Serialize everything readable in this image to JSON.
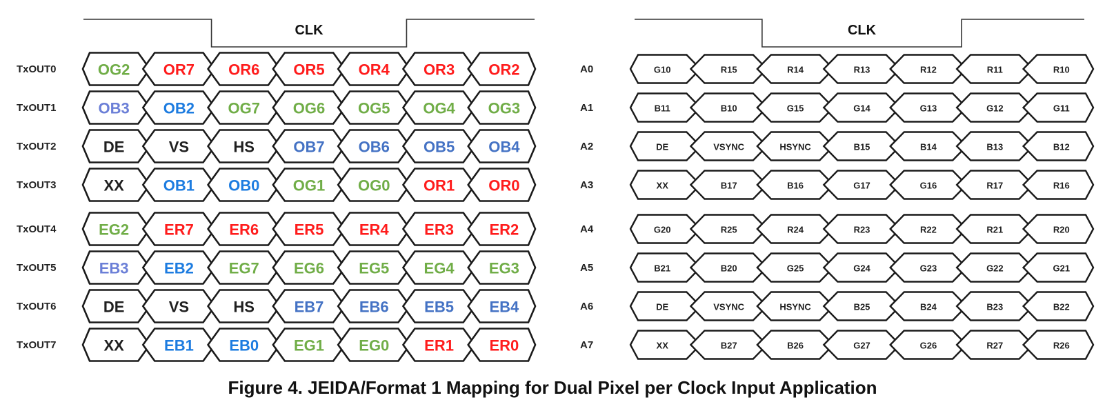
{
  "figure": {
    "caption": "Figure 4. JEIDA/Format 1 Mapping for Dual Pixel per Clock Input Application"
  },
  "colors": {
    "green": "#70AD47",
    "red": "#FF1C1C",
    "blue": "#4472C4",
    "blue_bright": "#1D7CE0",
    "blue_light": "#6B7FD7",
    "black": "#1F1F1F",
    "stroke": "#1A1A1A",
    "waveform": "#333333"
  },
  "panels": [
    {
      "id": "txout-bit-mapping",
      "clock": {
        "label": "CLK",
        "waveform": "high-low-high",
        "drop_at_cell_boundary": 2,
        "rise_at_cell_boundary": 5
      },
      "rows": [
        {
          "label": "TxOUT0",
          "cells": [
            {
              "text": "OG2",
              "color": "green"
            },
            {
              "text": "OR7",
              "color": "red"
            },
            {
              "text": "OR6",
              "color": "red"
            },
            {
              "text": "OR5",
              "color": "red"
            },
            {
              "text": "OR4",
              "color": "red"
            },
            {
              "text": "OR3",
              "color": "red"
            },
            {
              "text": "OR2",
              "color": "red"
            }
          ]
        },
        {
          "label": "TxOUT1",
          "cells": [
            {
              "text": "OB3",
              "color": "blue_light"
            },
            {
              "text": "OB2",
              "color": "blue_bright"
            },
            {
              "text": "OG7",
              "color": "green"
            },
            {
              "text": "OG6",
              "color": "green"
            },
            {
              "text": "OG5",
              "color": "green"
            },
            {
              "text": "OG4",
              "color": "green"
            },
            {
              "text": "OG3",
              "color": "green"
            }
          ]
        },
        {
          "label": "TxOUT2",
          "cells": [
            {
              "text": "DE",
              "color": "black"
            },
            {
              "text": "VS",
              "color": "black"
            },
            {
              "text": "HS",
              "color": "black"
            },
            {
              "text": "OB7",
              "color": "blue"
            },
            {
              "text": "OB6",
              "color": "blue"
            },
            {
              "text": "OB5",
              "color": "blue"
            },
            {
              "text": "OB4",
              "color": "blue"
            }
          ]
        },
        {
          "label": "TxOUT3",
          "cells": [
            {
              "text": "XX",
              "color": "black"
            },
            {
              "text": "OB1",
              "color": "blue_bright"
            },
            {
              "text": "OB0",
              "color": "blue_bright"
            },
            {
              "text": "OG1",
              "color": "green"
            },
            {
              "text": "OG0",
              "color": "green"
            },
            {
              "text": "OR1",
              "color": "red"
            },
            {
              "text": "OR0",
              "color": "red"
            }
          ]
        },
        {
          "label": "TxOUT4",
          "cells": [
            {
              "text": "EG2",
              "color": "green"
            },
            {
              "text": "ER7",
              "color": "red"
            },
            {
              "text": "ER6",
              "color": "red"
            },
            {
              "text": "ER5",
              "color": "red"
            },
            {
              "text": "ER4",
              "color": "red"
            },
            {
              "text": "ER3",
              "color": "red"
            },
            {
              "text": "ER2",
              "color": "red"
            }
          ]
        },
        {
          "label": "TxOUT5",
          "cells": [
            {
              "text": "EB3",
              "color": "blue_light"
            },
            {
              "text": "EB2",
              "color": "blue_bright"
            },
            {
              "text": "EG7",
              "color": "green"
            },
            {
              "text": "EG6",
              "color": "green"
            },
            {
              "text": "EG5",
              "color": "green"
            },
            {
              "text": "EG4",
              "color": "green"
            },
            {
              "text": "EG3",
              "color": "green"
            }
          ]
        },
        {
          "label": "TxOUT6",
          "cells": [
            {
              "text": "DE",
              "color": "black"
            },
            {
              "text": "VS",
              "color": "black"
            },
            {
              "text": "HS",
              "color": "black"
            },
            {
              "text": "EB7",
              "color": "blue"
            },
            {
              "text": "EB6",
              "color": "blue"
            },
            {
              "text": "EB5",
              "color": "blue"
            },
            {
              "text": "EB4",
              "color": "blue"
            }
          ]
        },
        {
          "label": "TxOUT7",
          "cells": [
            {
              "text": "XX",
              "color": "black"
            },
            {
              "text": "EB1",
              "color": "blue_bright"
            },
            {
              "text": "EB0",
              "color": "blue_bright"
            },
            {
              "text": "EG1",
              "color": "green"
            },
            {
              "text": "EG0",
              "color": "green"
            },
            {
              "text": "ER1",
              "color": "red"
            },
            {
              "text": "ER0",
              "color": "red"
            }
          ]
        }
      ]
    },
    {
      "id": "input-pin-mapping",
      "clock": {
        "label": "CLK",
        "waveform": "high-low-high",
        "drop_at_cell_boundary": 2,
        "rise_at_cell_boundary": 5
      },
      "rows": [
        {
          "label": "A0",
          "cells": [
            {
              "text": "G10",
              "color": "black"
            },
            {
              "text": "R15",
              "color": "black"
            },
            {
              "text": "R14",
              "color": "black"
            },
            {
              "text": "R13",
              "color": "black"
            },
            {
              "text": "R12",
              "color": "black"
            },
            {
              "text": "R11",
              "color": "black"
            },
            {
              "text": "R10",
              "color": "black"
            }
          ]
        },
        {
          "label": "A1",
          "cells": [
            {
              "text": "B11",
              "color": "black"
            },
            {
              "text": "B10",
              "color": "black"
            },
            {
              "text": "G15",
              "color": "black"
            },
            {
              "text": "G14",
              "color": "black"
            },
            {
              "text": "G13",
              "color": "black"
            },
            {
              "text": "G12",
              "color": "black"
            },
            {
              "text": "G11",
              "color": "black"
            }
          ]
        },
        {
          "label": "A2",
          "cells": [
            {
              "text": "DE",
              "color": "black"
            },
            {
              "text": "VSYNC",
              "color": "black"
            },
            {
              "text": "HSYNC",
              "color": "black"
            },
            {
              "text": "B15",
              "color": "black"
            },
            {
              "text": "B14",
              "color": "black"
            },
            {
              "text": "B13",
              "color": "black"
            },
            {
              "text": "B12",
              "color": "black"
            }
          ]
        },
        {
          "label": "A3",
          "cells": [
            {
              "text": "XX",
              "color": "black"
            },
            {
              "text": "B17",
              "color": "black"
            },
            {
              "text": "B16",
              "color": "black"
            },
            {
              "text": "G17",
              "color": "black"
            },
            {
              "text": "G16",
              "color": "black"
            },
            {
              "text": "R17",
              "color": "black"
            },
            {
              "text": "R16",
              "color": "black"
            }
          ]
        },
        {
          "label": "A4",
          "cells": [
            {
              "text": "G20",
              "color": "black"
            },
            {
              "text": "R25",
              "color": "black"
            },
            {
              "text": "R24",
              "color": "black"
            },
            {
              "text": "R23",
              "color": "black"
            },
            {
              "text": "R22",
              "color": "black"
            },
            {
              "text": "R21",
              "color": "black"
            },
            {
              "text": "R20",
              "color": "black"
            }
          ]
        },
        {
          "label": "A5",
          "cells": [
            {
              "text": "B21",
              "color": "black"
            },
            {
              "text": "B20",
              "color": "black"
            },
            {
              "text": "G25",
              "color": "black"
            },
            {
              "text": "G24",
              "color": "black"
            },
            {
              "text": "G23",
              "color": "black"
            },
            {
              "text": "G22",
              "color": "black"
            },
            {
              "text": "G21",
              "color": "black"
            }
          ]
        },
        {
          "label": "A6",
          "cells": [
            {
              "text": "DE",
              "color": "black"
            },
            {
              "text": "VSYNC",
              "color": "black"
            },
            {
              "text": "HSYNC",
              "color": "black"
            },
            {
              "text": "B25",
              "color": "black"
            },
            {
              "text": "B24",
              "color": "black"
            },
            {
              "text": "B23",
              "color": "black"
            },
            {
              "text": "B22",
              "color": "black"
            }
          ]
        },
        {
          "label": "A7",
          "cells": [
            {
              "text": "XX",
              "color": "black"
            },
            {
              "text": "B27",
              "color": "black"
            },
            {
              "text": "B26",
              "color": "black"
            },
            {
              "text": "G27",
              "color": "black"
            },
            {
              "text": "G26",
              "color": "black"
            },
            {
              "text": "R27",
              "color": "black"
            },
            {
              "text": "R26",
              "color": "black"
            }
          ]
        }
      ]
    }
  ]
}
